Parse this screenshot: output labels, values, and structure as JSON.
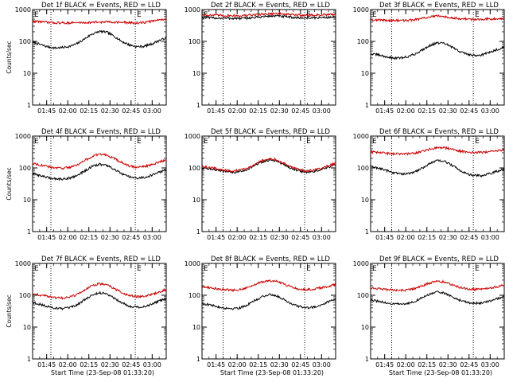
{
  "chart_data": [
    {
      "title": "Det 1f BLACK = Events, RED = LLD",
      "type": "line",
      "xlabel": "",
      "ylabel": "Counts/sec",
      "flag_left": "E",
      "flag_right": "E",
      "x_ticks": [
        "01:45",
        "02:00",
        "02:15",
        "02:30",
        "02:45",
        "03:00"
      ],
      "x_range": [
        "01:35",
        "03:10"
      ],
      "ylim": [
        1,
        1000
      ],
      "yscale": "log",
      "y_ticks": [
        "1",
        "10",
        "100",
        "1000"
      ],
      "vlines": [
        "01:48",
        "02:48"
      ],
      "series": [
        {
          "color": "#000000",
          "values": [
            95,
            80,
            68,
            62,
            64,
            70,
            85,
            120,
            170,
            205,
            195,
            145,
            100,
            78,
            68,
            70,
            82,
            105,
            130
          ]
        },
        {
          "color": "#cc0000",
          "values": [
            430,
            420,
            395,
            385,
            380,
            382,
            385,
            390,
            395,
            400,
            410,
            405,
            395,
            385,
            380,
            390,
            430,
            470,
            520
          ]
        }
      ]
    },
    {
      "title": "Det 2f BLACK = Events, RED = LLD",
      "type": "line",
      "xlabel": "",
      "ylabel": "",
      "flag_left": "E",
      "flag_right": "E",
      "x_ticks": [
        "01:45",
        "02:00",
        "02:15",
        "02:30",
        "02:45",
        "03:00"
      ],
      "x_range": [
        "01:35",
        "03:10"
      ],
      "ylim": [
        1,
        1000
      ],
      "yscale": "log",
      "y_ticks": [
        "1",
        "10",
        "100",
        "1000"
      ],
      "vlines": [
        "01:50",
        "02:48"
      ],
      "series": [
        {
          "color": "#000000",
          "values": [
            560,
            550,
            540,
            535,
            530,
            525,
            535,
            560,
            590,
            620,
            630,
            600,
            570,
            550,
            545,
            550,
            560,
            570,
            580
          ]
        },
        {
          "color": "#cc0000",
          "values": [
            680,
            670,
            660,
            650,
            645,
            640,
            650,
            680,
            710,
            740,
            750,
            720,
            690,
            670,
            665,
            670,
            680,
            690,
            700
          ]
        }
      ]
    },
    {
      "title": "Det 3f BLACK = Events, RED = LLD",
      "type": "line",
      "xlabel": "",
      "ylabel": "",
      "flag_left": "E",
      "flag_right": "E",
      "x_ticks": [
        "01:45",
        "02:00",
        "02:15",
        "02:30",
        "02:45",
        "03:00"
      ],
      "x_range": [
        "01:35",
        "03:10"
      ],
      "ylim": [
        1,
        1000
      ],
      "yscale": "log",
      "y_ticks": [
        "1",
        "10",
        "100",
        "1000"
      ],
      "vlines": [
        "01:50",
        "02:48"
      ],
      "series": [
        {
          "color": "#000000",
          "values": [
            40,
            38,
            33,
            30,
            30,
            33,
            40,
            55,
            75,
            90,
            85,
            65,
            48,
            40,
            36,
            38,
            45,
            55,
            65
          ]
        },
        {
          "color": "#cc0000",
          "values": [
            480,
            470,
            460,
            455,
            450,
            460,
            480,
            530,
            590,
            620,
            600,
            560,
            520,
            500,
            490,
            500,
            510,
            520,
            530
          ]
        }
      ]
    },
    {
      "title": "Det 4f BLACK = Events, RED = LLD",
      "type": "line",
      "xlabel": "",
      "ylabel": "Counts/sec",
      "flag_left": "E",
      "flag_right": "E",
      "x_ticks": [
        "01:45",
        "02:00",
        "02:15",
        "02:30",
        "02:45",
        "03:00"
      ],
      "x_range": [
        "01:35",
        "03:10"
      ],
      "ylim": [
        1,
        1000
      ],
      "yscale": "log",
      "y_ticks": [
        "1",
        "10",
        "100",
        "1000"
      ],
      "vlines": [
        "01:48",
        "02:48"
      ],
      "series": [
        {
          "color": "#000000",
          "values": [
            65,
            58,
            50,
            46,
            45,
            48,
            58,
            80,
            110,
            130,
            120,
            90,
            65,
            52,
            48,
            50,
            58,
            72,
            88
          ]
        },
        {
          "color": "#cc0000",
          "values": [
            140,
            125,
            110,
            100,
            98,
            105,
            125,
            170,
            225,
            270,
            255,
            195,
            145,
            115,
            105,
            110,
            125,
            150,
            180
          ]
        }
      ]
    },
    {
      "title": "Det 5f BLACK = Events, RED = LLD",
      "type": "line",
      "xlabel": "",
      "ylabel": "",
      "flag_left": "E",
      "flag_right": "E",
      "x_ticks": [
        "01:45",
        "02:00",
        "02:15",
        "02:30",
        "02:45",
        "03:00"
      ],
      "x_range": [
        "01:35",
        "03:10"
      ],
      "ylim": [
        1,
        1000
      ],
      "yscale": "log",
      "y_ticks": [
        "1",
        "10",
        "100",
        "1000"
      ],
      "vlines": [
        "01:50",
        "02:48"
      ],
      "series": [
        {
          "color": "#000000",
          "values": [
            100,
            95,
            85,
            76,
            72,
            75,
            88,
            115,
            150,
            175,
            165,
            130,
            98,
            80,
            74,
            76,
            88,
            105,
            125
          ]
        },
        {
          "color": "#cc0000",
          "values": [
            110,
            104,
            94,
            84,
            80,
            83,
            97,
            126,
            165,
            195,
            183,
            143,
            108,
            88,
            82,
            84,
            97,
            116,
            140
          ]
        }
      ]
    },
    {
      "title": "Det 6f BLACK = Events, RED = LLD",
      "type": "line",
      "xlabel": "",
      "ylabel": "",
      "flag_left": "E",
      "flag_right": "E",
      "x_ticks": [
        "01:45",
        "02:00",
        "02:15",
        "02:30",
        "02:45",
        "03:00"
      ],
      "x_range": [
        "01:35",
        "03:10"
      ],
      "ylim": [
        1,
        1000
      ],
      "yscale": "log",
      "y_ticks": [
        "1",
        "10",
        "100",
        "1000"
      ],
      "vlines": [
        "01:50",
        "02:48"
      ],
      "series": [
        {
          "color": "#000000",
          "values": [
            110,
            100,
            85,
            72,
            65,
            65,
            75,
            100,
            140,
            170,
            160,
            120,
            85,
            65,
            57,
            58,
            65,
            78,
            92
          ]
        },
        {
          "color": "#cc0000",
          "values": [
            320,
            305,
            290,
            280,
            275,
            278,
            290,
            330,
            390,
            440,
            430,
            385,
            340,
            315,
            305,
            310,
            325,
            350,
            380
          ]
        }
      ]
    },
    {
      "title": "Det 7f BLACK = Events, RED = LLD",
      "type": "line",
      "xlabel": "Start Time (23-Sep-08 01:33:20)",
      "ylabel": "Counts/sec",
      "flag_left": "E",
      "flag_right": "E",
      "x_ticks": [
        "01:45",
        "02:00",
        "02:15",
        "02:30",
        "02:45",
        "03:00"
      ],
      "x_range": [
        "01:35",
        "03:10"
      ],
      "ylim": [
        1,
        1000
      ],
      "yscale": "log",
      "y_ticks": [
        "1",
        "10",
        "100",
        "1000"
      ],
      "vlines": [
        "01:48",
        "02:48"
      ],
      "series": [
        {
          "color": "#000000",
          "values": [
            60,
            52,
            44,
            40,
            38,
            40,
            50,
            72,
            100,
            120,
            112,
            82,
            58,
            46,
            42,
            44,
            52,
            65,
            80
          ]
        },
        {
          "color": "#cc0000",
          "values": [
            110,
            102,
            92,
            85,
            82,
            88,
            105,
            145,
            195,
            230,
            215,
            165,
            120,
            98,
            90,
            92,
            105,
            125,
            150
          ]
        }
      ]
    },
    {
      "title": "Det 8f BLACK = Events, RED = LLD",
      "type": "line",
      "xlabel": "Start Time (23-Sep-08 01:33:20)",
      "ylabel": "",
      "flag_left": "E",
      "flag_right": "E",
      "x_ticks": [
        "01:45",
        "02:00",
        "02:15",
        "02:30",
        "02:45",
        "03:00"
      ],
      "x_range": [
        "01:35",
        "03:10"
      ],
      "ylim": [
        1,
        1000
      ],
      "yscale": "log",
      "y_ticks": [
        "1",
        "10",
        "100",
        "1000"
      ],
      "vlines": [
        "01:50",
        "02:48"
      ],
      "series": [
        {
          "color": "#000000",
          "values": [
            55,
            50,
            44,
            40,
            38,
            40,
            48,
            65,
            88,
            105,
            98,
            75,
            55,
            45,
            40,
            42,
            50,
            62,
            75
          ]
        },
        {
          "color": "#cc0000",
          "values": [
            185,
            175,
            160,
            150,
            145,
            150,
            170,
            210,
            260,
            290,
            275,
            225,
            180,
            160,
            150,
            155,
            170,
            190,
            215
          ]
        }
      ]
    },
    {
      "title": "Det 9f BLACK = Events, RED = LLD",
      "type": "line",
      "xlabel": "Start Time (23-Sep-08 01:33:20)",
      "ylabel": "",
      "flag_left": "E",
      "flag_right": "E",
      "x_ticks": [
        "01:45",
        "02:00",
        "02:15",
        "02:30",
        "02:45",
        "03:00"
      ],
      "x_range": [
        "01:35",
        "03:10"
      ],
      "ylim": [
        1,
        1000
      ],
      "yscale": "log",
      "y_ticks": [
        "1",
        "10",
        "100",
        "1000"
      ],
      "vlines": [
        "01:50",
        "02:48"
      ],
      "series": [
        {
          "color": "#000000",
          "values": [
            70,
            65,
            58,
            54,
            52,
            55,
            65,
            85,
            110,
            125,
            115,
            90,
            70,
            60,
            56,
            58,
            65,
            78,
            90
          ]
        },
        {
          "color": "#cc0000",
          "values": [
            170,
            162,
            152,
            145,
            142,
            148,
            162,
            200,
            245,
            275,
            260,
            215,
            178,
            160,
            152,
            155,
            168,
            185,
            205
          ]
        }
      ]
    }
  ]
}
